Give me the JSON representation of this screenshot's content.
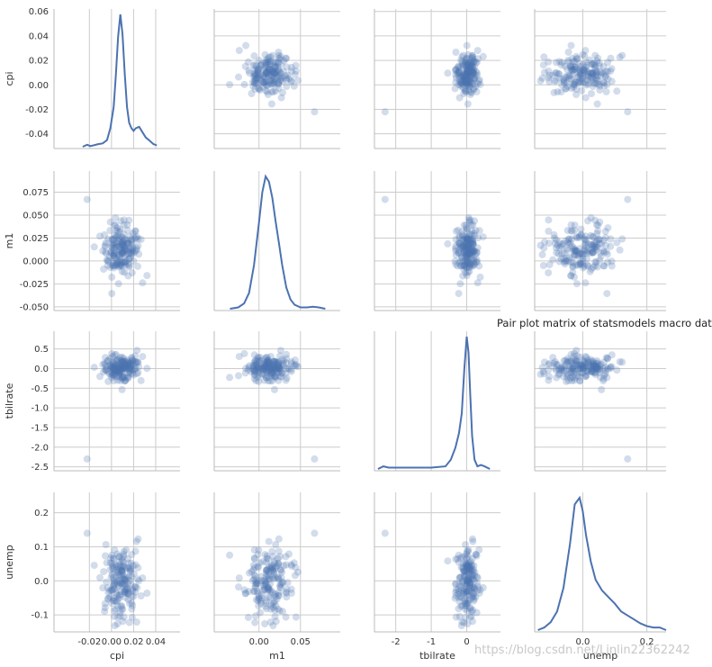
{
  "chart_data": {
    "type": "pairplot",
    "title": "Pair plot matrix of statsmodels macro data",
    "watermark": "https://blog.csdn.net/Linlin22362242",
    "variables": [
      "cpi",
      "m1",
      "tbilrate",
      "unemp"
    ],
    "style": {
      "point_color": "#4c72b0",
      "point_opacity": 0.25,
      "line_color": "#4c72b0",
      "grid_color": "#cccccc",
      "background": "#ffffff",
      "grid": true
    },
    "axes": {
      "cpi": {
        "lim": [
          -0.052,
          0.062
        ],
        "ticks": [
          "-0.04",
          "-0.02",
          "0.00",
          "0.02",
          "0.04",
          "0.06"
        ],
        "xticks": [
          "-0.02",
          "0.00",
          "0.02",
          "0.04"
        ]
      },
      "m1": {
        "lim": [
          -0.054,
          0.098
        ],
        "ticks": [
          "-0.050",
          "-0.025",
          "0.000",
          "0.025",
          "0.050",
          "0.075"
        ],
        "xticks": [
          "0.00",
          "0.05"
        ]
      },
      "tbilrate": {
        "lim": [
          -2.6,
          0.95
        ],
        "ticks": [
          "-2.5",
          "-2.0",
          "-1.5",
          "-1.0",
          "-0.5",
          "0.0",
          "0.5"
        ],
        "xticks": [
          "-2",
          "-1",
          "0"
        ]
      },
      "unemp": {
        "lim": [
          -0.15,
          0.26
        ],
        "ticks": [
          "-0.1",
          "0.0",
          "0.1",
          "0.2"
        ],
        "xticks": [
          "0.0",
          "0.2"
        ]
      }
    },
    "kde": {
      "cpi": {
        "x": [
          -0.026,
          -0.022,
          -0.019,
          -0.012,
          -0.008,
          -0.004,
          -0.001,
          0.002,
          0.004,
          0.006,
          0.008,
          0.01,
          0.012,
          0.014,
          0.016,
          0.018,
          0.02,
          0.022,
          0.025,
          0.028,
          0.031,
          0.034,
          0.038,
          0.041
        ],
        "y": [
          0.0,
          0.015,
          0.005,
          0.02,
          0.025,
          0.05,
          0.14,
          0.3,
          0.55,
          0.83,
          1.0,
          0.85,
          0.55,
          0.3,
          0.18,
          0.14,
          0.12,
          0.14,
          0.15,
          0.11,
          0.07,
          0.05,
          0.02,
          0.01
        ]
      },
      "m1": {
        "x": [
          -0.035,
          -0.025,
          -0.018,
          -0.012,
          -0.006,
          0.0,
          0.004,
          0.008,
          0.012,
          0.016,
          0.02,
          0.024,
          0.028,
          0.033,
          0.038,
          0.043,
          0.05,
          0.058,
          0.065,
          0.072,
          0.08
        ],
        "y": [
          0.0,
          0.01,
          0.04,
          0.12,
          0.33,
          0.65,
          0.88,
          1.0,
          0.96,
          0.84,
          0.66,
          0.5,
          0.33,
          0.16,
          0.07,
          0.03,
          0.01,
          0.01,
          0.015,
          0.01,
          0.0
        ]
      },
      "tbilrate": {
        "x": [
          -2.5,
          -2.35,
          -2.2,
          -2.0,
          -1.5,
          -1.0,
          -0.6,
          -0.45,
          -0.32,
          -0.22,
          -0.14,
          -0.07,
          0.0,
          0.05,
          0.1,
          0.15,
          0.22,
          0.3,
          0.4,
          0.5,
          0.65
        ],
        "y": [
          0.0,
          0.02,
          0.01,
          0.01,
          0.01,
          0.01,
          0.02,
          0.07,
          0.16,
          0.27,
          0.42,
          0.75,
          1.0,
          0.88,
          0.55,
          0.25,
          0.07,
          0.02,
          0.03,
          0.02,
          0.0
        ]
      },
      "unemp": {
        "x": [
          -0.14,
          -0.12,
          -0.1,
          -0.08,
          -0.06,
          -0.04,
          -0.025,
          -0.01,
          0.0,
          0.01,
          0.025,
          0.04,
          0.06,
          0.08,
          0.1,
          0.12,
          0.14,
          0.16,
          0.18,
          0.2,
          0.22,
          0.24,
          0.26
        ],
        "y": [
          0.0,
          0.02,
          0.06,
          0.14,
          0.32,
          0.65,
          0.95,
          1.0,
          0.9,
          0.72,
          0.52,
          0.38,
          0.3,
          0.25,
          0.2,
          0.14,
          0.11,
          0.08,
          0.05,
          0.03,
          0.02,
          0.02,
          0.0
        ]
      }
    }
  }
}
